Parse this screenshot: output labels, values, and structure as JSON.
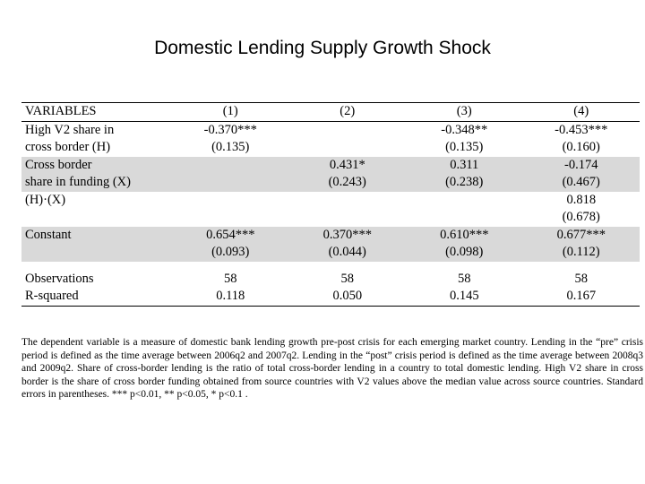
{
  "title": "Domestic Lending Supply Growth Shock",
  "table": {
    "header": [
      "VARIABLES",
      "(1)",
      "(2)",
      "(3)",
      "(4)"
    ],
    "rows": [
      {
        "label": "High V2 share in",
        "cells": [
          "-0.370***",
          "",
          "-0.348**",
          "-0.453***"
        ]
      },
      {
        "label": "cross border (H)",
        "cells": [
          "(0.135)",
          "",
          "(0.135)",
          "(0.160)"
        ]
      },
      {
        "label": "Cross border",
        "cells": [
          "",
          "0.431*",
          "0.311",
          "-0.174"
        ]
      },
      {
        "label": "share in funding (X)",
        "cells": [
          "",
          "(0.243)",
          "(0.238)",
          "(0.467)"
        ]
      },
      {
        "label": "(H)·(X)",
        "cells": [
          "",
          "",
          "",
          "0.818"
        ]
      },
      {
        "label": "",
        "cells": [
          "",
          "",
          "",
          "(0.678)"
        ]
      },
      {
        "label": "Constant",
        "cells": [
          "0.654***",
          "0.370***",
          "0.610***",
          "0.677***"
        ]
      },
      {
        "label": "",
        "cells": [
          "(0.093)",
          "(0.044)",
          "(0.098)",
          "(0.112)"
        ]
      }
    ],
    "stats": [
      {
        "label": "Observations",
        "cells": [
          "58",
          "58",
          "58",
          "58"
        ]
      },
      {
        "label": "R-squared",
        "cells": [
          "0.118",
          "0.050",
          "0.145",
          "0.167"
        ]
      }
    ]
  },
  "note": "The dependent variable is a measure of domestic bank lending growth pre-post crisis for each emerging market country. Lending in the “pre” crisis period is defined as the time average between 2006q2 and 2007q2. Lending in the “post” crisis period is defined as the time average between 2008q3 and 2009q2. Share of cross-border lending is the ratio of total cross-border lending in a country to total domestic lending. High V2 share in cross border is the share of cross border funding obtained from source countries with V2 values above the median value across source countries. Standard errors in parentheses. *** p<0.01, ** p<0.05, * p<0.1 ."
}
